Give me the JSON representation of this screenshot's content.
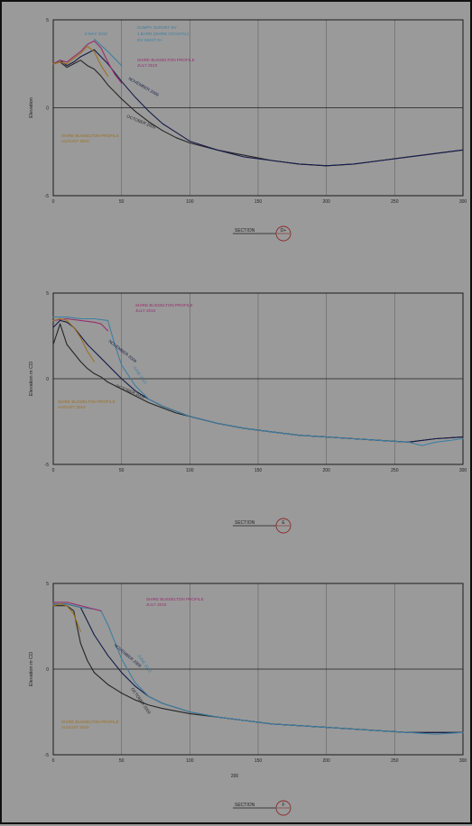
{
  "colors": {
    "background": "#9a9a9a",
    "grid": "#6a6a6a",
    "axis": "#1c1c1c",
    "oct2009": "#262626",
    "nov2009": "#161c48",
    "jun2010": "#3f7fa1",
    "jul2010": "#97306c",
    "aug2010": "#9c7120",
    "dumpy": "#3f7fa1",
    "section_circle": "#8a2a2a"
  },
  "chart_data": [
    {
      "type": "line",
      "ylabel": "Elevation",
      "ylim": [
        -5,
        5
      ],
      "xlim": [
        0,
        300
      ],
      "xticks": [
        0,
        50,
        100,
        150,
        200,
        250,
        300
      ],
      "xtick_labels": [
        "0",
        "50",
        "100",
        "150",
        "200",
        "250",
        "300"
      ],
      "yticks": [
        -5,
        0,
        5
      ],
      "ytick_labels": [
        "-5",
        "0",
        "5"
      ],
      "grid": true,
      "section_label": "SECTION",
      "section_id": "D+",
      "series": [
        {
          "name": "OCTOBER 2009",
          "color_key": "oct2009",
          "x": [
            0,
            5,
            10,
            15,
            20,
            25,
            30,
            35,
            40,
            50,
            60,
            70,
            80,
            90,
            100,
            120,
            140,
            160,
            180,
            200,
            220,
            240,
            260,
            280,
            300
          ],
          "y": [
            2.5,
            2.6,
            2.3,
            2.5,
            2.7,
            2.4,
            2.2,
            1.8,
            1.3,
            0.5,
            -0.2,
            -0.8,
            -1.3,
            -1.7,
            -2.0,
            -2.4,
            -2.7,
            -3.0,
            -3.2,
            -3.3,
            -3.2,
            -3.0,
            -2.8,
            -2.6,
            -2.4
          ]
        },
        {
          "name": "NOVEMBER 2009",
          "color_key": "nov2009",
          "x": [
            0,
            5,
            10,
            15,
            20,
            25,
            30,
            40,
            50,
            60,
            70,
            80,
            90,
            100,
            120,
            140,
            160,
            180,
            200,
            220,
            240,
            260,
            280,
            300
          ],
          "y": [
            2.5,
            2.7,
            2.4,
            2.6,
            2.9,
            3.1,
            3.3,
            2.5,
            1.5,
            0.6,
            -0.2,
            -0.9,
            -1.4,
            -1.9,
            -2.4,
            -2.8,
            -3.0,
            -3.2,
            -3.3,
            -3.2,
            -3.0,
            -2.8,
            -2.6,
            -2.4
          ]
        },
        {
          "name": "SHIRE BUSSELTON PROFILE JULY 2010",
          "color_key": "jul2010",
          "x": [
            0,
            5,
            10,
            15,
            20,
            25,
            30,
            35,
            40,
            45,
            50
          ],
          "y": [
            2.5,
            2.7,
            2.6,
            2.9,
            3.2,
            3.6,
            3.8,
            3.4,
            2.6,
            1.9,
            1.4
          ]
        },
        {
          "name": "SHIRE BUSSELTON PROFILE AUGUST 2010",
          "color_key": "aug2010",
          "x": [
            0,
            5,
            10,
            15,
            20,
            25,
            30,
            35,
            40
          ],
          "y": [
            2.5,
            2.6,
            2.5,
            2.8,
            3.1,
            3.5,
            3.2,
            2.4,
            1.8
          ]
        },
        {
          "name": "DUMPY SURVEY BY J.BARR (SHIRE COASTAL) 8 MAY 2010 EH WEST D+",
          "color_key": "dumpy",
          "x": [
            30,
            40,
            50
          ],
          "y": [
            3.9,
            3.2,
            2.4
          ]
        }
      ],
      "annotations": [
        {
          "text": "8 MAY 2010",
          "color_key": "dumpy"
        },
        {
          "text": "DUMPY SURVEY BY",
          "color_key": "dumpy"
        },
        {
          "text": "J.BARR (SHIRE COASTAL)",
          "color_key": "dumpy"
        },
        {
          "text": "EH WEST D+",
          "color_key": "dumpy"
        },
        {
          "text": "SHIRE BUSSELTON PROFILE",
          "color_key": "jul2010"
        },
        {
          "text": "JULY 2010",
          "color_key": "jul2010"
        },
        {
          "text": "NOVEMBER 2009",
          "color_key": "nov2009"
        },
        {
          "text": "SHIRE BUSSELTON PROFILE",
          "color_key": "aug2010"
        },
        {
          "text": "AUGUST 2010",
          "color_key": "aug2010"
        },
        {
          "text": "OCTOBER 2009",
          "color_key": "oct2009"
        }
      ]
    },
    {
      "type": "line",
      "ylabel": "Elevation m CD",
      "ylim": [
        -5,
        5
      ],
      "xlim": [
        0,
        300
      ],
      "xticks": [
        0,
        50,
        100,
        150,
        200,
        250,
        300
      ],
      "xtick_labels": [
        "0",
        "50",
        "100",
        "150",
        "200",
        "250",
        "300"
      ],
      "yticks": [
        -5,
        0,
        5
      ],
      "ytick_labels": [
        "-5",
        "0",
        "5"
      ],
      "grid": true,
      "section_label": "SECTION",
      "section_id": "E",
      "series": [
        {
          "name": "OCTOBER 2009",
          "color_key": "oct2009",
          "x": [
            0,
            5,
            10,
            15,
            20,
            25,
            30,
            35,
            40,
            50,
            60,
            70,
            80,
            90,
            100,
            120,
            140,
            160,
            180,
            200,
            220,
            240,
            260,
            280,
            300
          ],
          "y": [
            2.0,
            3.2,
            2.0,
            1.5,
            1.0,
            0.6,
            0.3,
            0.1,
            -0.2,
            -0.6,
            -1.0,
            -1.4,
            -1.7,
            -2.0,
            -2.2,
            -2.6,
            -2.9,
            -3.1,
            -3.3,
            -3.4,
            -3.5,
            -3.6,
            -3.7,
            -3.5,
            -3.4
          ]
        },
        {
          "name": "NOVEMBER 2009",
          "color_key": "nov2009",
          "x": [
            0,
            5,
            10,
            15,
            20,
            25,
            30,
            35,
            40,
            50,
            60,
            70,
            80,
            90,
            100,
            120,
            140,
            160,
            180,
            200,
            220,
            240,
            260,
            280,
            300
          ],
          "y": [
            3.0,
            3.4,
            3.3,
            3.0,
            2.5,
            2.0,
            1.6,
            1.2,
            0.8,
            0.0,
            -0.7,
            -1.2,
            -1.6,
            -1.9,
            -2.2,
            -2.6,
            -2.9,
            -3.1,
            -3.3,
            -3.4,
            -3.5,
            -3.6,
            -3.7,
            -3.5,
            -3.4
          ]
        },
        {
          "name": "JUNE 2010",
          "color_key": "jun2010",
          "x": [
            0,
            10,
            20,
            30,
            40,
            45,
            50,
            60,
            70,
            80,
            90,
            100,
            120,
            140,
            160,
            180,
            200,
            220,
            240,
            260,
            270,
            280,
            290,
            300
          ],
          "y": [
            3.6,
            3.6,
            3.5,
            3.5,
            3.4,
            2.0,
            0.8,
            -0.4,
            -1.2,
            -1.6,
            -1.9,
            -2.2,
            -2.6,
            -2.9,
            -3.1,
            -3.3,
            -3.4,
            -3.5,
            -3.6,
            -3.7,
            -3.9,
            -3.7,
            -3.6,
            -3.5
          ]
        },
        {
          "name": "SHIRE BUSSELTON PROFILE JULY 2010",
          "color_key": "jul2010",
          "x": [
            0,
            10,
            20,
            30,
            35,
            40
          ],
          "y": [
            3.4,
            3.5,
            3.4,
            3.3,
            3.2,
            2.8
          ]
        },
        {
          "name": "SHIRE BUSSELTON PROFILE AUGUST 2010",
          "color_key": "aug2010",
          "x": [
            0,
            5,
            10,
            15,
            20,
            25,
            30
          ],
          "y": [
            3.4,
            3.5,
            3.4,
            3.0,
            2.4,
            1.6,
            1.0
          ]
        }
      ],
      "annotations": [
        {
          "text": "SHIRE BUSSELTON PROFILE",
          "color_key": "jul2010"
        },
        {
          "text": "JULY 2010",
          "color_key": "jul2010"
        },
        {
          "text": "JUNE 2010",
          "color_key": "jun2010"
        },
        {
          "text": "NOVEMBER 2009",
          "color_key": "nov2009"
        },
        {
          "text": "OCTOBER 2009",
          "color_key": "oct2009"
        },
        {
          "text": "SHIRE BUSSELTON PROFILE",
          "color_key": "aug2010"
        },
        {
          "text": "AUGUST 2010",
          "color_key": "aug2010"
        }
      ]
    },
    {
      "type": "line",
      "ylabel": "Elevation m CD",
      "xlabel": "200",
      "ylim": [
        -5,
        5
      ],
      "xlim": [
        0,
        300
      ],
      "xticks": [
        0,
        50,
        100,
        150,
        200,
        250,
        300
      ],
      "xtick_labels": [
        "0",
        "50",
        "100",
        "150",
        "200",
        "250",
        "300"
      ],
      "yticks": [
        -5,
        0,
        5
      ],
      "ytick_labels": [
        "-5",
        "0",
        "5"
      ],
      "grid": true,
      "section_label": "SECTION",
      "section_id": "F",
      "series": [
        {
          "name": "OCTOBER 2009",
          "color_key": "oct2009",
          "x": [
            0,
            10,
            15,
            20,
            25,
            30,
            40,
            50,
            60,
            70,
            80,
            100,
            120,
            140,
            160,
            180,
            200,
            220,
            240,
            260,
            280,
            300
          ],
          "y": [
            3.7,
            3.7,
            3.4,
            1.5,
            0.5,
            -0.2,
            -0.9,
            -1.4,
            -1.8,
            -2.1,
            -2.3,
            -2.6,
            -2.8,
            -3.0,
            -3.2,
            -3.3,
            -3.4,
            -3.5,
            -3.6,
            -3.7,
            -3.7,
            -3.7
          ]
        },
        {
          "name": "NOVEMBER 2009",
          "color_key": "nov2009",
          "x": [
            0,
            10,
            20,
            30,
            40,
            50,
            60,
            70,
            80,
            100,
            120,
            140,
            160,
            180,
            200,
            220,
            240,
            260,
            280,
            300
          ],
          "y": [
            3.8,
            3.8,
            3.6,
            2.0,
            0.8,
            -0.2,
            -1.0,
            -1.6,
            -2.0,
            -2.5,
            -2.8,
            -3.0,
            -3.2,
            -3.3,
            -3.4,
            -3.5,
            -3.6,
            -3.7,
            -3.7,
            -3.7
          ]
        },
        {
          "name": "JUNE 2010",
          "color_key": "jun2010",
          "x": [
            0,
            10,
            20,
            30,
            35,
            40,
            45,
            50,
            60,
            70,
            80,
            100,
            120,
            140,
            160,
            180,
            200,
            220,
            240,
            260,
            280,
            300
          ],
          "y": [
            3.8,
            3.8,
            3.6,
            3.5,
            3.4,
            2.6,
            1.6,
            0.6,
            -0.8,
            -1.6,
            -2.0,
            -2.5,
            -2.8,
            -3.0,
            -3.2,
            -3.3,
            -3.4,
            -3.5,
            -3.6,
            -3.7,
            -3.8,
            -3.7
          ]
        },
        {
          "name": "SHIRE BUSSELTON PROFILE JULY 2010",
          "color_key": "jul2010",
          "x": [
            0,
            10,
            20,
            30,
            35
          ],
          "y": [
            3.9,
            3.9,
            3.7,
            3.5,
            3.4
          ]
        },
        {
          "name": "SHIRE BUSSELTON PROFILE AUGUST 2010",
          "color_key": "aug2010",
          "x": [
            0,
            5,
            10,
            15,
            20
          ],
          "y": [
            3.7,
            3.8,
            3.7,
            3.2,
            2.2
          ]
        }
      ],
      "annotations": [
        {
          "text": "SHIRE BUSSELTON PROFILE",
          "color_key": "jul2010"
        },
        {
          "text": "JULY 2010",
          "color_key": "jul2010"
        },
        {
          "text": "JUNE 2010",
          "color_key": "jun2010"
        },
        {
          "text": "NOVEMBER 2009",
          "color_key": "nov2009"
        },
        {
          "text": "OCTOBER 2009",
          "color_key": "oct2009"
        },
        {
          "text": "SHIRE BUSSELTON PROFILE",
          "color_key": "aug2010"
        },
        {
          "text": "AUGUST 2010",
          "color_key": "aug2010"
        }
      ]
    }
  ]
}
